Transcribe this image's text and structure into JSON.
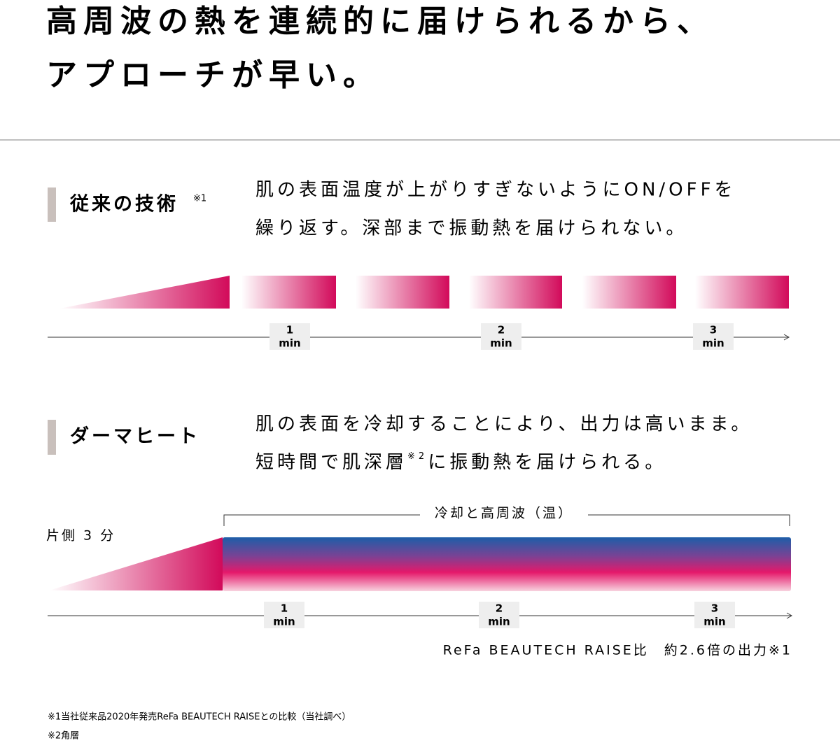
{
  "header": {
    "title_lines": [
      "高周波の熱を連続的に届けられるから、",
      "アプローチが早い。"
    ]
  },
  "sections": [
    {
      "label": "従来の技術",
      "label_note": "※1",
      "description_lines": [
        "肌の表面温度が上がりすぎないようにON/OFFを",
        "繰り返す。深部まで振動熱を届けられない。"
      ],
      "ticks": [
        {
          "number": "1",
          "unit": "min"
        },
        {
          "number": "2",
          "unit": "min"
        },
        {
          "number": "3",
          "unit": "min"
        }
      ]
    },
    {
      "label": "ダーマヒート",
      "description_line1": "肌の表面を冷却することにより、出力は高いまま。",
      "description_line2": {
        "before": "短時間で肌深層",
        "note": "※2",
        "after": "に振動熱を届けられる。"
      },
      "bracket_label": "冷却と高周波（温）",
      "side_label": "片側 3 分",
      "ticks": [
        {
          "number": "1",
          "unit": "min"
        },
        {
          "number": "2",
          "unit": "min"
        },
        {
          "number": "3",
          "unit": "min"
        }
      ],
      "comparison": "ReFa BEAUTECH RAISE比　約2.6倍の出力※1"
    }
  ],
  "footnotes": [
    "※1当社従来品2020年発売ReFa BEAUTECH RAISEとの比較（当社調べ）",
    "※2角層"
  ]
}
